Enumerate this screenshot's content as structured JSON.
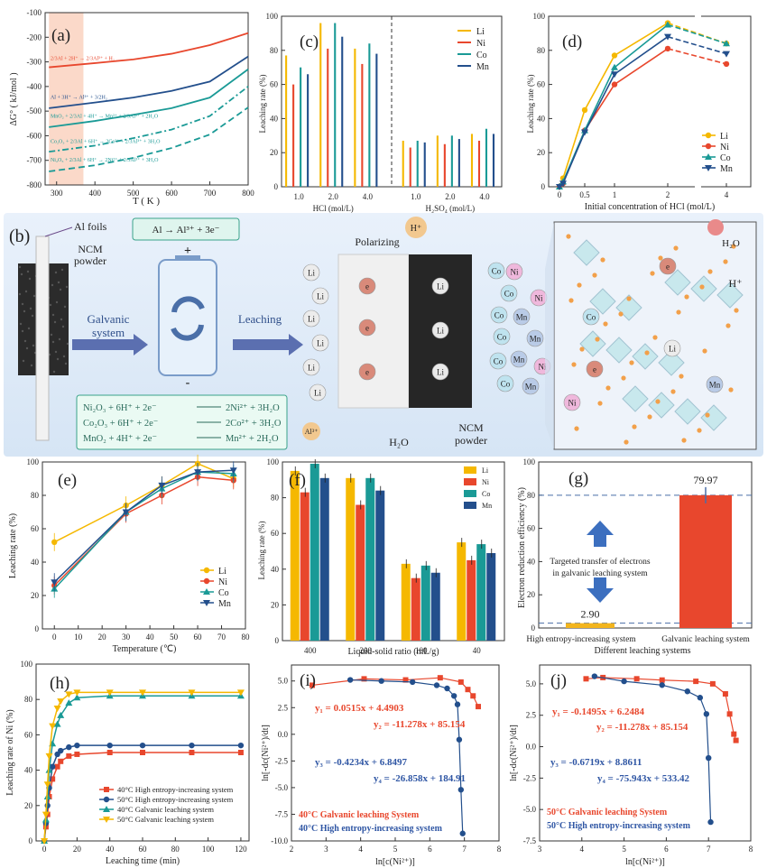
{
  "colors": {
    "li": "#f5b800",
    "ni": "#e8472d",
    "co": "#1a9a96",
    "mn": "#234f8c",
    "blue": "#2f56a4",
    "red": "#e8472d",
    "gold": "#f3b51d"
  },
  "panels": {
    "a": "(a)",
    "b": "(b)",
    "c": "(c)",
    "d": "(d)",
    "e": "(e)",
    "f": "(f)",
    "g": "(g)",
    "h": "(h)",
    "i": "(i)",
    "j": "(j)"
  },
  "chart_data": [
    {
      "panel": "a",
      "type": "line",
      "xlabel": "T ( K )",
      "ylabel": "ΔG° ( kJ/mol )",
      "xlim": [
        270,
        800
      ],
      "ylim": [
        -800,
        -100
      ],
      "xticks": [
        300,
        400,
        500,
        600,
        700,
        800
      ],
      "yticks": [
        -100,
        -200,
        -300,
        -400,
        -500,
        -600,
        -700,
        -800
      ],
      "highlight": [
        280,
        370
      ],
      "series": [
        {
          "name": "2/3Al + 2H⁺ → 2/3Al³⁺ + H₂",
          "color": "#e8472d",
          "dash": "solid",
          "x": [
            280,
            400,
            500,
            600,
            700,
            800
          ],
          "y": [
            -322,
            -305,
            -290,
            -267,
            -232,
            -183
          ]
        },
        {
          "name": "Al + 3H⁺ → Al³⁺ + 3/2H₂",
          "color": "#234f8c",
          "dash": "solid",
          "x": [
            280,
            400,
            500,
            600,
            700,
            800
          ],
          "y": [
            -488,
            -465,
            -445,
            -418,
            -380,
            -278
          ]
        },
        {
          "name": "MnO₂ + 2/3Al + 4H⁺ → Mn²⁺ + 2/3Al³⁺ + 2H₂O",
          "color": "#1a9a96",
          "dash": "solid",
          "x": [
            280,
            400,
            500,
            600,
            700,
            800
          ],
          "y": [
            -565,
            -540,
            -515,
            -488,
            -445,
            -330
          ]
        },
        {
          "name": "Co₂O₃ + 2/3Al + 6H⁺ → 2Co²⁺ + 2/3Al³⁺ + 3H₂O",
          "color": "#1a9a96",
          "dash": "dashdot",
          "x": [
            280,
            400,
            500,
            600,
            700,
            800
          ],
          "y": [
            -665,
            -640,
            -610,
            -575,
            -520,
            -400
          ]
        },
        {
          "name": "Ni₂O₃ + 2/3Al + 6H⁺ → 2Ni²⁺ + 2/3Al³⁺ + 3H₂O",
          "color": "#1a9a96",
          "dash": "dash",
          "x": [
            280,
            400,
            500,
            600,
            700,
            800
          ],
          "y": [
            -745,
            -720,
            -690,
            -650,
            -595,
            -485
          ]
        }
      ]
    },
    {
      "panel": "c",
      "type": "bar",
      "ylabel": "Leaching rate (%)",
      "ylim": [
        0,
        100
      ],
      "yticks": [
        0,
        20,
        40,
        60,
        80,
        100
      ],
      "groups": [
        "1.0",
        "2.0",
        "4.0",
        "1.0",
        "2.0",
        "4.0"
      ],
      "group_axes": [
        "HCl (mol/L)",
        "H₂SO₄ (mol/L)"
      ],
      "series": [
        {
          "name": "Li",
          "color": "#f5b800",
          "values": [
            77,
            96,
            81,
            27,
            30,
            31
          ]
        },
        {
          "name": "Ni",
          "color": "#e8472d",
          "values": [
            60,
            81,
            72,
            23,
            25,
            27
          ]
        },
        {
          "name": "Co",
          "color": "#1a9a96",
          "values": [
            70,
            96,
            84,
            27,
            30,
            34
          ]
        },
        {
          "name": "Mn",
          "color": "#234f8c",
          "values": [
            66,
            88,
            78,
            26,
            28,
            31
          ]
        }
      ]
    },
    {
      "panel": "d",
      "type": "line",
      "xlabel": "Initial concentration of HCl (mol/L)",
      "ylabel": "Leaching rate (%)",
      "x": [
        0,
        0.1,
        0.5,
        1,
        2,
        4
      ],
      "xticks": [
        "0",
        "0.5",
        "1",
        "2",
        "4"
      ],
      "ylim": [
        0,
        100
      ],
      "yticks": [
        0,
        20,
        40,
        60,
        80,
        100
      ],
      "series": [
        {
          "name": "Li",
          "color": "#f5b800",
          "values": [
            0,
            5,
            45,
            77,
            96,
            84
          ]
        },
        {
          "name": "Ni",
          "color": "#e8472d",
          "values": [
            0,
            2,
            33,
            60,
            81,
            72
          ]
        },
        {
          "name": "Co",
          "color": "#1a9a96",
          "values": [
            0,
            3,
            33,
            70,
            95,
            84
          ]
        },
        {
          "name": "Mn",
          "color": "#234f8c",
          "values": [
            0,
            2,
            32,
            66,
            88,
            78
          ]
        }
      ]
    },
    {
      "panel": "e",
      "type": "line",
      "xlabel": "Temperature (℃)",
      "ylabel": "Leaching rate (%)",
      "x": [
        0,
        30,
        45,
        60,
        75
      ],
      "xlim": [
        -5,
        80
      ],
      "xticks": [
        0,
        10,
        20,
        30,
        40,
        50,
        60,
        70,
        80
      ],
      "ylim": [
        0,
        100
      ],
      "yticks": [
        0,
        20,
        40,
        60,
        80,
        100
      ],
      "series": [
        {
          "name": "Li",
          "color": "#f5b800",
          "values": [
            52,
            74,
            86,
            99,
            90
          ]
        },
        {
          "name": "Ni",
          "color": "#e8472d",
          "values": [
            26,
            69,
            80,
            91,
            89
          ]
        },
        {
          "name": "Co",
          "color": "#1a9a96",
          "values": [
            24,
            70,
            84,
            94,
            93
          ]
        },
        {
          "name": "Mn",
          "color": "#234f8c",
          "values": [
            28,
            70,
            86,
            94,
            95
          ]
        }
      ]
    },
    {
      "panel": "f",
      "type": "bar",
      "xlabel": "Liquid-solid ratio (mL/g)",
      "ylabel": "Leaching rate (%)",
      "categories": [
        "400",
        "200",
        "100",
        "40"
      ],
      "ylim": [
        0,
        100
      ],
      "yticks": [
        0,
        20,
        40,
        60,
        80,
        100
      ],
      "series": [
        {
          "name": "Li",
          "color": "#f5b800",
          "values": [
            95,
            91,
            43,
            55
          ]
        },
        {
          "name": "Ni",
          "color": "#e8472d",
          "values": [
            83,
            76,
            35,
            45
          ]
        },
        {
          "name": "Co",
          "color": "#1a9a96",
          "values": [
            99,
            91,
            42,
            54
          ]
        },
        {
          "name": "Mn",
          "color": "#234f8c",
          "values": [
            91,
            84,
            38,
            49
          ]
        }
      ]
    },
    {
      "panel": "g",
      "type": "bar",
      "xlabel": "Different leaching systems",
      "ylabel": "Electron reduction efficiency (%)",
      "categories": [
        "High entropy-increasing system",
        "Galvanic leaching system"
      ],
      "values": [
        2.9,
        79.97
      ],
      "value_labels": [
        "2.90",
        "79.97"
      ],
      "ylim": [
        0,
        100
      ],
      "yticks": [
        0,
        20,
        40,
        60,
        80,
        100
      ],
      "annotation": "Targeted transfer of electrons in galvanic leaching system"
    },
    {
      "panel": "h",
      "type": "line",
      "xlabel": "Leaching time (min)",
      "ylabel": "Leaching rate of Ni (%)",
      "x": [
        0,
        1,
        2,
        3,
        5,
        8,
        10,
        15,
        20,
        40,
        60,
        90,
        120
      ],
      "xlim": [
        -5,
        125
      ],
      "xticks": [
        0,
        20,
        40,
        60,
        80,
        100,
        120
      ],
      "ylim": [
        0,
        100
      ],
      "yticks": [
        0,
        20,
        40,
        60,
        80,
        100
      ],
      "series": [
        {
          "name": "40°C High entropy-increasing system",
          "color": "#e8472d",
          "marker": "square",
          "values": [
            0,
            8,
            15,
            25,
            35,
            42,
            45,
            48,
            49,
            50,
            50,
            50,
            50
          ]
        },
        {
          "name": "50°C High entropy-increasing system",
          "color": "#234f8c",
          "marker": "circle",
          "values": [
            0,
            10,
            20,
            30,
            42,
            49,
            51,
            53,
            54,
            54,
            54,
            54,
            54
          ]
        },
        {
          "name": "40°C Galvanic leaching system",
          "color": "#1a9a96",
          "marker": "triangle",
          "values": [
            0,
            12,
            25,
            40,
            55,
            66,
            71,
            78,
            81,
            82,
            82,
            82,
            82
          ]
        },
        {
          "name": "50°C Galvanic leaching system",
          "color": "#f5b800",
          "marker": "invtriangle",
          "values": [
            0,
            15,
            32,
            48,
            65,
            75,
            79,
            83,
            84,
            84,
            84,
            84,
            84
          ]
        }
      ]
    },
    {
      "panel": "i",
      "type": "scatter",
      "xlabel": "ln[c(Ni²⁺)]",
      "ylabel": "ln[-dc(Ni²⁺)/dt]",
      "xlim": [
        2,
        8
      ],
      "xticks": [
        2,
        3,
        4,
        5,
        6,
        7,
        8
      ],
      "ylim": [
        -10,
        6.5
      ],
      "yticks": [
        5.0,
        2.5,
        0.0,
        -2.5,
        -5.0,
        -7.5,
        -10.0
      ],
      "equations": [
        "y₁ = 0.0515x + 4.4903",
        "y₂ = -11.278x + 85.154",
        "y₃ = -0.4234x + 6.8497",
        "y₄ = -26.858x + 184.91"
      ],
      "legend": [
        "40°C Galvanic leaching System",
        "40°C High entropy-increasing system"
      ],
      "series": [
        {
          "name": "40°C Galvanic leaching System",
          "color": "#e8472d",
          "x": [
            2.6,
            4.1,
            5.3,
            6.3,
            6.9,
            7.1,
            7.25,
            7.4
          ],
          "y": [
            4.6,
            5.2,
            5.1,
            5.3,
            4.9,
            4.2,
            3.6,
            2.6
          ]
        },
        {
          "name": "40°C High entropy-increasing system",
          "color": "#234f8c",
          "x": [
            3.7,
            4.6,
            5.5,
            6.2,
            6.5,
            6.7,
            6.8,
            6.85,
            6.9,
            6.95
          ],
          "y": [
            5.1,
            5.0,
            4.9,
            4.6,
            4.3,
            3.6,
            2.8,
            -0.5,
            -5.2,
            -9.3
          ]
        }
      ]
    },
    {
      "panel": "j",
      "type": "scatter",
      "xlabel": "ln[c(Ni²⁺)]",
      "ylabel": "ln[-dc(Ni²⁺)/dt]",
      "xlim": [
        3,
        8
      ],
      "xticks": [
        3,
        4,
        5,
        6,
        7,
        8
      ],
      "ylim": [
        -7.5,
        6.5
      ],
      "yticks": [
        5.0,
        2.5,
        0.0,
        -2.5,
        -5.0,
        -7.5
      ],
      "equations": [
        "y₁ = -0.1495x + 6.2484",
        "y₂ = -11.278x + 85.154",
        "y₃ = -0.6719x + 8.8611",
        "y₄ = -75.943x + 533.42"
      ],
      "legend": [
        "50°C Galvanic leaching System",
        "50°C High entropy-increasing system"
      ],
      "series": [
        {
          "name": "50°C Galvanic leaching System",
          "color": "#e8472d",
          "x": [
            4.1,
            4.5,
            5.3,
            5.9,
            6.7,
            7.1,
            7.4,
            7.5,
            7.6,
            7.65
          ],
          "y": [
            5.4,
            5.5,
            5.4,
            5.3,
            5.2,
            5.0,
            4.2,
            2.6,
            1.0,
            0.5
          ]
        },
        {
          "name": "50°C High entropy-increasing system",
          "color": "#234f8c",
          "x": [
            4.3,
            5.0,
            5.9,
            6.5,
            6.8,
            6.95,
            7.0,
            7.05
          ],
          "y": [
            5.6,
            5.2,
            4.9,
            4.4,
            3.9,
            2.6,
            -0.9,
            -6.0
          ]
        }
      ]
    }
  ],
  "schematic": {
    "al_foils": "Al foils",
    "ncm_powder": "NCM\npowder",
    "galvanic": "Galvanic\nsystem",
    "leaching": "Leaching",
    "al_reaction": "Al → Al³⁺ + 3e⁻",
    "polarizing": "Polarizing",
    "ncm_powder2": "NCM\npowder",
    "h2o": "H₂O",
    "h2o_right": "H₂O",
    "h_plus": "H⁺",
    "h_plus_right": "H⁺",
    "al3": "Al³⁺",
    "plus": "+",
    "minus": "-",
    "reactions": [
      {
        "left": "Ni₂O₃ + 6H⁺ + 2e⁻",
        "right": "2Ni²⁺ + 3H₂O"
      },
      {
        "left": "Co₂O₃ + 6H⁺ + 2e⁻",
        "right": "2Co²⁺ + 3H₂O"
      },
      {
        "left": "MnO₂ + 4H⁺ + 2e⁻",
        "right": "Mn²⁺ + 2H₂O"
      }
    ],
    "ion_li": "Li",
    "ion_co": "Co",
    "ion_ni": "Ni",
    "ion_mn": "Mn",
    "electron": "e"
  }
}
